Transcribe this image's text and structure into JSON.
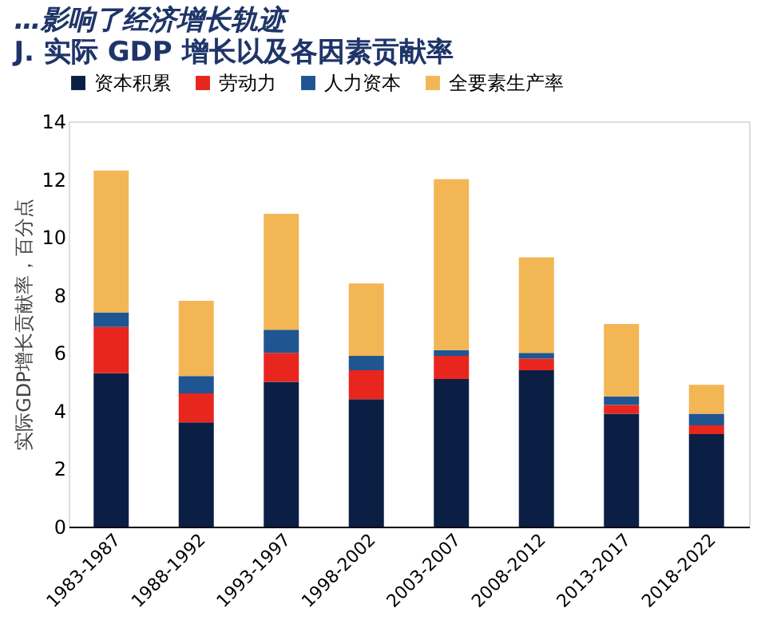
{
  "chart_data": {
    "type": "bar",
    "stacked": true,
    "title": "…影响了经济增长轨迹",
    "subtitle": "J. 实际 GDP 增长以及各因素贡献率",
    "ylabel": "实际GDP增长贡献率，百分点",
    "categories": [
      "1983-1987",
      "1988-1992",
      "1993-1997",
      "1998-2002",
      "2003-2007",
      "2008-2012",
      "2013-2017",
      "2018-2022"
    ],
    "series": [
      {
        "name": "资本积累",
        "color": "#0b1f45",
        "values": [
          5.3,
          3.6,
          5.0,
          4.4,
          5.1,
          5.4,
          3.9,
          3.2
        ]
      },
      {
        "name": "劳动力",
        "color": "#e8261e",
        "values": [
          1.6,
          1.0,
          1.0,
          1.0,
          0.8,
          0.4,
          0.3,
          0.3
        ]
      },
      {
        "name": "人力资本",
        "color": "#1f5591",
        "values": [
          0.5,
          0.6,
          0.8,
          0.5,
          0.2,
          0.2,
          0.3,
          0.4
        ]
      },
      {
        "name": "全要素生产率",
        "color": "#f2b654",
        "values": [
          4.9,
          2.6,
          4.0,
          2.5,
          5.9,
          3.3,
          2.5,
          1.0
        ]
      }
    ],
    "ylim": [
      0,
      14
    ],
    "yticks": [
      0,
      2,
      4,
      6,
      8,
      10,
      12,
      14
    ],
    "grid": false,
    "legend": "top"
  }
}
